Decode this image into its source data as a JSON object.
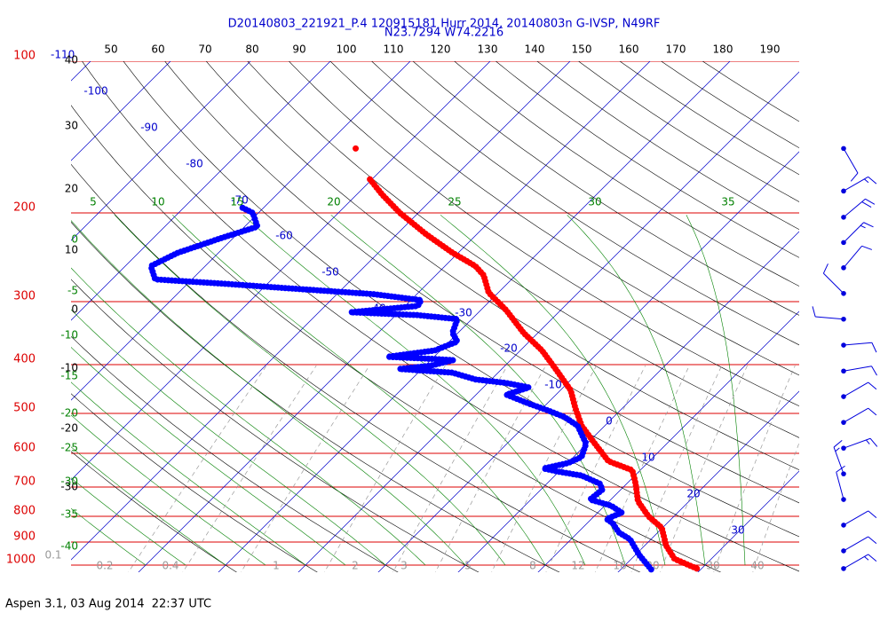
{
  "chart_data": {
    "type": "skewt",
    "title": "D20140803_221921_P.4 120915181 Hurr 2014, 20140803n G-IVSP, N49RF",
    "subtitle": "N23.7294 W74.2216",
    "log_y": true,
    "ylim": [
      1000,
      100
    ],
    "yticks": [
      100,
      200,
      300,
      400,
      500,
      600,
      700,
      800,
      900,
      1000
    ],
    "isobar_color": "#dd0000",
    "isotherms": {
      "color": "#0000cc",
      "values": [
        -110,
        -100,
        -90,
        -80,
        -70,
        -60,
        -50,
        -40,
        -30,
        -20,
        -10,
        0,
        10,
        20,
        30
      ]
    },
    "dry_adiabats": {
      "color": "#000000",
      "values": [
        -30,
        -20,
        -10,
        0,
        10,
        20,
        30,
        40,
        50,
        60,
        70,
        80,
        90,
        100,
        110,
        120,
        130,
        140,
        150,
        160,
        170,
        180,
        190
      ]
    },
    "moist_adiabats": {
      "color": "#008000",
      "values": [
        -40,
        -35,
        -30,
        -25,
        -20,
        -15,
        -10,
        -5,
        0,
        5,
        10,
        15,
        20,
        25,
        30,
        35
      ]
    },
    "mixing_ratios": {
      "color": "#999999",
      "values": [
        0.1,
        0.2,
        0.4,
        1,
        2,
        3,
        5,
        8,
        12,
        16,
        20,
        30,
        40
      ]
    },
    "series": [
      {
        "color": "#ff0000",
        "x": [
          29.4,
          25.4,
          22.7,
          19.9,
          16.8,
          13.6,
          11.1,
          9.0,
          4.9,
          1.0,
          -2.9,
          -5.9,
          -8.7,
          -13.4,
          -17.3,
          -21.8,
          -26.8,
          -31.2,
          -34.0,
          -36.2,
          -40.7,
          -46.2,
          -52.3,
          -56.8,
          -60.7
        ],
        "values": [
          1016,
          972,
          915,
          843,
          800,
          747,
          689,
          648,
          622,
          574,
          529,
          488,
          450,
          407,
          375,
          346,
          312,
          288,
          266,
          255,
          240,
          221,
          200,
          184,
          170
        ]
      },
      {
        "color": "#0000ff",
        "x": [
          23.8,
          20.4,
          17.4,
          15.1,
          13.2,
          11.9,
          13.0,
          10.8,
          7.4,
          7.7,
          6.6,
          3.3,
          0.1,
          -2.3,
          0.1,
          1.0,
          -0.1,
          -3.4,
          -6.2,
          -9.3,
          -12.3,
          -16.2,
          -14.3,
          -17.7,
          -22.0,
          -25.7,
          -32.8,
          -29.3,
          -27.2,
          -29.6,
          -35.8,
          -30.7,
          -29.0,
          -30.7,
          -31.8,
          -37.3,
          -46.0,
          -38.4,
          -38.7,
          -45.4,
          -57.3,
          -64.6,
          -74.6,
          -76.8,
          -75.1,
          -71.4,
          -68.4,
          -70.7,
          -73.2
        ],
        "values": [
          1020,
          953,
          889,
          861,
          826,
          810,
          787,
          762,
          741,
          708,
          689,
          664,
          653,
          643,
          627,
          610,
          574,
          529,
          508,
          492,
          478,
          459,
          444,
          435,
          428,
          415,
          408,
          402,
          392,
          390,
          386,
          375,
          360,
          346,
          325,
          319,
          315,
          306,
          298,
          290,
          282,
          277,
          271,
          255,
          240,
          224,
          213,
          200,
          194
        ]
      },
      {
        "color": "#ff0000",
        "x": [
          -65.9
        ],
        "values": [
          149
        ]
      }
    ],
    "wind": {
      "color": "#0000dd",
      "pressure": [
        149,
        181,
        204,
        229,
        257,
        289,
        325,
        366,
        412,
        463,
        521,
        586,
        659,
        741,
        833,
        937,
        1016
      ],
      "direction": [
        150,
        60,
        50,
        45,
        40,
        315,
        275,
        85,
        80,
        60,
        60,
        70,
        340,
        345,
        60,
        60,
        60
      ],
      "speed": [
        10,
        15,
        20,
        15,
        10,
        10,
        10,
        10,
        10,
        10,
        10,
        15,
        15,
        10,
        10,
        10,
        15
      ]
    }
  },
  "footer": "Aspen 3.1, 03 Aug 2014  22:37 UTC"
}
